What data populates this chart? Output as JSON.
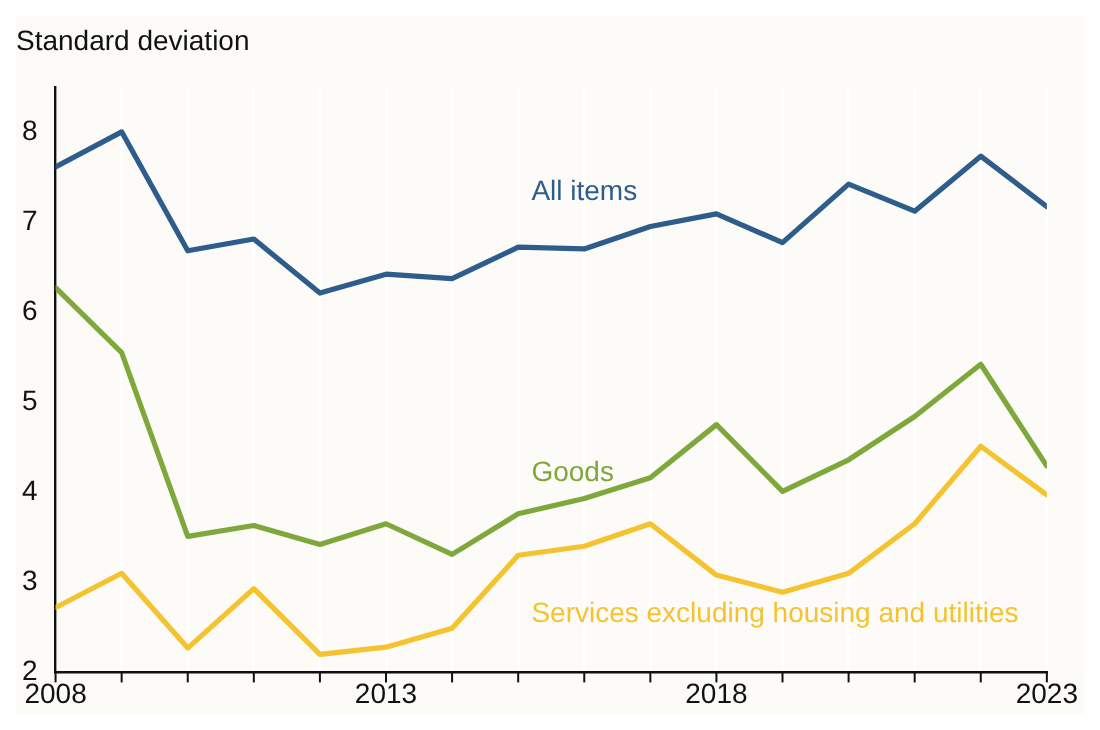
{
  "chart_data": {
    "type": "line",
    "ylabel": "Standard deviation",
    "x": [
      2008,
      2009,
      2010,
      2011,
      2012,
      2013,
      2014,
      2015,
      2016,
      2017,
      2018,
      2019,
      2020,
      2021,
      2022,
      2023
    ],
    "series": [
      {
        "name": "All items",
        "color": "#2e5d8c",
        "values": [
          7.61,
          8.0,
          6.68,
          6.81,
          6.21,
          6.42,
          6.37,
          6.72,
          6.7,
          6.95,
          7.09,
          6.77,
          7.42,
          7.12,
          7.73,
          7.17
        ]
      },
      {
        "name": "Goods",
        "color": "#7ea83b",
        "values": [
          6.27,
          5.55,
          3.51,
          3.63,
          3.42,
          3.65,
          3.31,
          3.76,
          3.93,
          4.16,
          4.75,
          4.01,
          4.36,
          4.84,
          5.42,
          4.29
        ]
      },
      {
        "name": "Services excluding housing and utilities",
        "color": "#f5c330",
        "values": [
          2.72,
          3.1,
          2.27,
          2.93,
          2.2,
          2.28,
          2.49,
          3.3,
          3.4,
          3.65,
          3.08,
          2.89,
          3.1,
          3.65,
          4.51,
          3.97
        ]
      }
    ],
    "xlim": [
      2008,
      2023
    ],
    "xticks": [
      2008,
      {
        "value": 2009,
        "label": null
      },
      {
        "value": 2010,
        "label": null
      },
      {
        "value": 2011,
        "label": null
      },
      {
        "value": 2012,
        "label": null
      },
      2013,
      {
        "value": 2014,
        "label": null
      },
      {
        "value": 2015,
        "label": null
      },
      {
        "value": 2016,
        "label": null
      },
      {
        "value": 2017,
        "label": null
      },
      2018,
      {
        "value": 2019,
        "label": null
      },
      {
        "value": 2020,
        "label": null
      },
      {
        "value": 2021,
        "label": null
      },
      {
        "value": 2022,
        "label": null
      },
      2023
    ],
    "ylim": [
      2,
      8.5
    ],
    "yticks": [
      2,
      3,
      4,
      5,
      6,
      7,
      8
    ],
    "grid": "x",
    "legend": false,
    "marker": "none",
    "line_style": "solid"
  }
}
